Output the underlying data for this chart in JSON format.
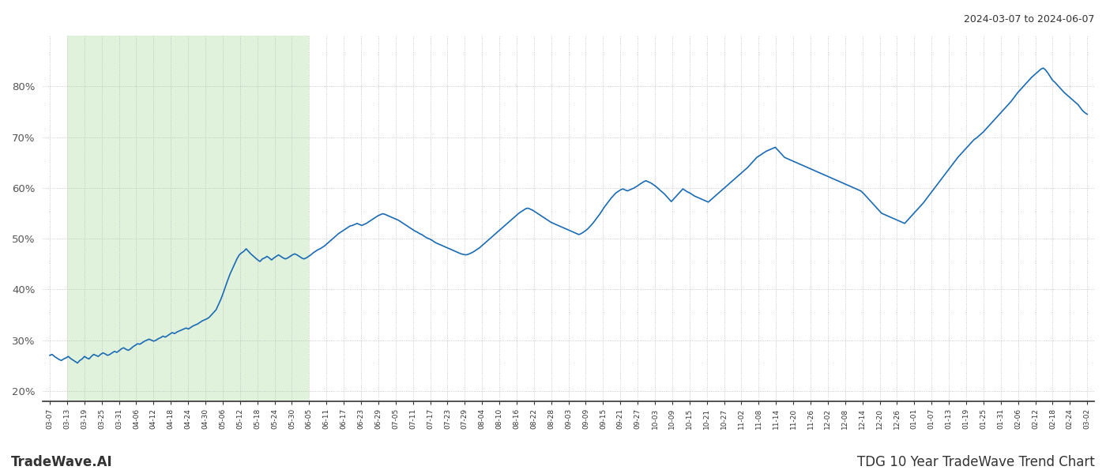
{
  "title_right": "2024-03-07 to 2024-06-07",
  "footer_left": "TradeWave.AI",
  "footer_right": "TDG 10 Year TradeWave Trend Chart",
  "line_color": "#1a6bb5",
  "shade_color": "#c8e6c0",
  "shade_alpha": 0.55,
  "ylim": [
    0.18,
    0.9
  ],
  "yticks": [
    0.2,
    0.3,
    0.4,
    0.5,
    0.6,
    0.7,
    0.8
  ],
  "background_color": "#ffffff",
  "grid_color": "#bbbbbb",
  "x_labels": [
    "03-07",
    "03-13",
    "03-19",
    "03-25",
    "03-31",
    "04-06",
    "04-12",
    "04-18",
    "04-24",
    "04-30",
    "05-06",
    "05-12",
    "05-18",
    "05-24",
    "05-30",
    "06-05",
    "06-11",
    "06-17",
    "06-23",
    "06-29",
    "07-05",
    "07-11",
    "07-17",
    "07-23",
    "07-29",
    "08-04",
    "08-10",
    "08-16",
    "08-22",
    "08-28",
    "09-03",
    "09-09",
    "09-15",
    "09-21",
    "09-27",
    "10-03",
    "10-09",
    "10-15",
    "10-21",
    "10-27",
    "11-02",
    "11-08",
    "11-14",
    "11-20",
    "11-26",
    "12-02",
    "12-08",
    "12-14",
    "12-20",
    "12-26",
    "01-01",
    "01-07",
    "01-13",
    "01-19",
    "01-25",
    "01-31",
    "02-06",
    "02-12",
    "02-18",
    "02-24",
    "03-02"
  ],
  "shade_start_label": "03-13",
  "shade_end_label": "06-05",
  "y_values": [
    0.27,
    0.272,
    0.268,
    0.265,
    0.262,
    0.26,
    0.263,
    0.265,
    0.268,
    0.264,
    0.261,
    0.258,
    0.255,
    0.26,
    0.263,
    0.268,
    0.265,
    0.263,
    0.268,
    0.272,
    0.27,
    0.268,
    0.272,
    0.275,
    0.273,
    0.27,
    0.272,
    0.275,
    0.278,
    0.276,
    0.279,
    0.283,
    0.285,
    0.282,
    0.28,
    0.283,
    0.287,
    0.29,
    0.293,
    0.292,
    0.295,
    0.298,
    0.3,
    0.302,
    0.3,
    0.298,
    0.3,
    0.303,
    0.305,
    0.308,
    0.306,
    0.309,
    0.312,
    0.315,
    0.313,
    0.316,
    0.318,
    0.32,
    0.322,
    0.324,
    0.322,
    0.325,
    0.328,
    0.33,
    0.332,
    0.335,
    0.338,
    0.34,
    0.342,
    0.345,
    0.35,
    0.355,
    0.36,
    0.37,
    0.38,
    0.392,
    0.405,
    0.418,
    0.43,
    0.44,
    0.45,
    0.46,
    0.468,
    0.472,
    0.475,
    0.48,
    0.475,
    0.47,
    0.466,
    0.462,
    0.458,
    0.455,
    0.46,
    0.462,
    0.465,
    0.462,
    0.458,
    0.462,
    0.465,
    0.468,
    0.465,
    0.462,
    0.46,
    0.462,
    0.465,
    0.468,
    0.47,
    0.468,
    0.465,
    0.462,
    0.46,
    0.462,
    0.465,
    0.468,
    0.472,
    0.475,
    0.478,
    0.48,
    0.483,
    0.486,
    0.49,
    0.494,
    0.498,
    0.502,
    0.506,
    0.51,
    0.513,
    0.516,
    0.519,
    0.522,
    0.525,
    0.526,
    0.528,
    0.53,
    0.528,
    0.526,
    0.528,
    0.53,
    0.533,
    0.536,
    0.539,
    0.542,
    0.545,
    0.547,
    0.549,
    0.548,
    0.546,
    0.544,
    0.542,
    0.54,
    0.538,
    0.536,
    0.533,
    0.53,
    0.527,
    0.524,
    0.521,
    0.518,
    0.515,
    0.513,
    0.51,
    0.508,
    0.505,
    0.502,
    0.5,
    0.498,
    0.495,
    0.492,
    0.49,
    0.488,
    0.486,
    0.484,
    0.482,
    0.48,
    0.478,
    0.476,
    0.474,
    0.472,
    0.47,
    0.469,
    0.468,
    0.469,
    0.471,
    0.473,
    0.476,
    0.479,
    0.482,
    0.486,
    0.49,
    0.494,
    0.498,
    0.502,
    0.506,
    0.51,
    0.514,
    0.518,
    0.522,
    0.526,
    0.53,
    0.534,
    0.538,
    0.542,
    0.546,
    0.55,
    0.553,
    0.556,
    0.559,
    0.56,
    0.558,
    0.556,
    0.553,
    0.55,
    0.547,
    0.544,
    0.541,
    0.538,
    0.535,
    0.532,
    0.53,
    0.528,
    0.526,
    0.524,
    0.522,
    0.52,
    0.518,
    0.516,
    0.514,
    0.512,
    0.51,
    0.508,
    0.51,
    0.513,
    0.516,
    0.52,
    0.525,
    0.53,
    0.536,
    0.542,
    0.548,
    0.555,
    0.562,
    0.568,
    0.574,
    0.58,
    0.585,
    0.59,
    0.593,
    0.596,
    0.598,
    0.596,
    0.594,
    0.596,
    0.598,
    0.6,
    0.603,
    0.606,
    0.609,
    0.612,
    0.614,
    0.612,
    0.61,
    0.607,
    0.604,
    0.6,
    0.596,
    0.592,
    0.588,
    0.583,
    0.578,
    0.573,
    0.578,
    0.583,
    0.588,
    0.593,
    0.598,
    0.595,
    0.592,
    0.59,
    0.587,
    0.584,
    0.582,
    0.58,
    0.578,
    0.576,
    0.574,
    0.572,
    0.576,
    0.58,
    0.584,
    0.588,
    0.592,
    0.596,
    0.6,
    0.604,
    0.608,
    0.612,
    0.616,
    0.62,
    0.624,
    0.628,
    0.632,
    0.636,
    0.64,
    0.645,
    0.65,
    0.655,
    0.66,
    0.663,
    0.666,
    0.669,
    0.672,
    0.674,
    0.676,
    0.678,
    0.68,
    0.675,
    0.67,
    0.665,
    0.66,
    0.658,
    0.656,
    0.654,
    0.652,
    0.65,
    0.648,
    0.646,
    0.644,
    0.642,
    0.64,
    0.638,
    0.636,
    0.634,
    0.632,
    0.63,
    0.628,
    0.626,
    0.624,
    0.622,
    0.62,
    0.618,
    0.616,
    0.614,
    0.612,
    0.61,
    0.608,
    0.606,
    0.604,
    0.602,
    0.6,
    0.598,
    0.596,
    0.594,
    0.59,
    0.585,
    0.58,
    0.575,
    0.57,
    0.565,
    0.56,
    0.555,
    0.55,
    0.548,
    0.546,
    0.544,
    0.542,
    0.54,
    0.538,
    0.536,
    0.534,
    0.532,
    0.53,
    0.535,
    0.54,
    0.545,
    0.55,
    0.555,
    0.56,
    0.565,
    0.57,
    0.576,
    0.582,
    0.588,
    0.594,
    0.6,
    0.606,
    0.612,
    0.618,
    0.624,
    0.63,
    0.636,
    0.642,
    0.648,
    0.654,
    0.66,
    0.665,
    0.67,
    0.675,
    0.68,
    0.685,
    0.69,
    0.695,
    0.698,
    0.702,
    0.706,
    0.71,
    0.715,
    0.72,
    0.725,
    0.73,
    0.735,
    0.74,
    0.745,
    0.75,
    0.755,
    0.76,
    0.765,
    0.77,
    0.776,
    0.782,
    0.788,
    0.793,
    0.798,
    0.803,
    0.808,
    0.813,
    0.818,
    0.822,
    0.826,
    0.83,
    0.834,
    0.836,
    0.832,
    0.826,
    0.819,
    0.812,
    0.808,
    0.803,
    0.798,
    0.793,
    0.788,
    0.784,
    0.78,
    0.776,
    0.772,
    0.768,
    0.764,
    0.758,
    0.752,
    0.748,
    0.745
  ]
}
